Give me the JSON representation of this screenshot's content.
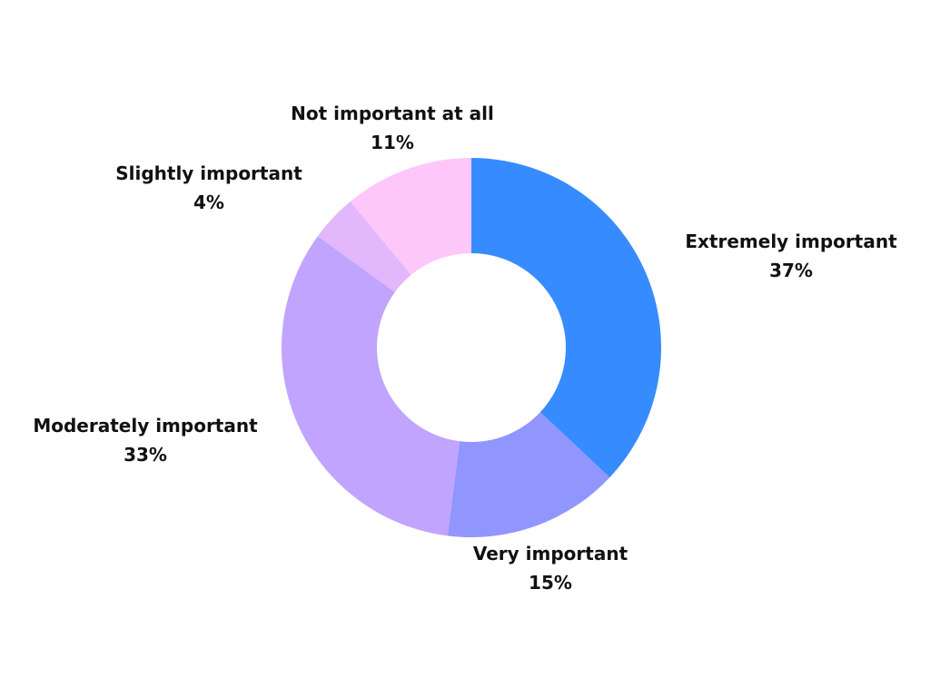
{
  "chart_data": {
    "type": "pie",
    "variant": "donut",
    "title": "",
    "slices": [
      {
        "label": "Extremely important",
        "value": 37,
        "display": "37%",
        "color": "#368cff"
      },
      {
        "label": "Very important",
        "value": 15,
        "display": "15%",
        "color": "#9196ff"
      },
      {
        "label": "Moderately important",
        "value": 33,
        "display": "33%",
        "color": "#c1a4fd"
      },
      {
        "label": "Slightly important",
        "value": 4,
        "display": "4%",
        "color": "#e3b7fb"
      },
      {
        "label": "Not important at all",
        "value": 11,
        "display": "11%",
        "color": "#fec7f9"
      }
    ],
    "start_angle": "12 o'clock",
    "direction": "clockwise",
    "legend": "none",
    "labels": "outside"
  }
}
